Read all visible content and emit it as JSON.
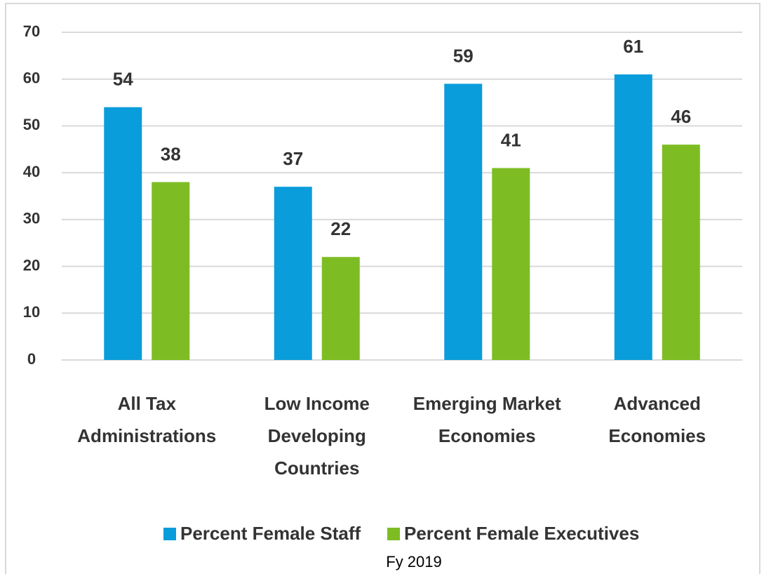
{
  "chart_data": {
    "type": "bar",
    "caption": "Fy 2019",
    "categories": [
      "All Tax\nAdministrations",
      "Low Income\nDeveloping\nCountries",
      "Emerging Market\nEconomies",
      "Advanced\nEconomies"
    ],
    "series": [
      {
        "name": "Percent Female Staff",
        "color": "#0a9ddb",
        "values": [
          54,
          37,
          59,
          61
        ]
      },
      {
        "name": "Percent Female Executives",
        "color": "#7dbd23",
        "values": [
          38,
          22,
          41,
          46
        ]
      }
    ],
    "ylim": [
      0,
      70
    ],
    "yticks": [
      0,
      10,
      20,
      30,
      40,
      50,
      60,
      70
    ],
    "grid": true,
    "legend": "bottom"
  }
}
